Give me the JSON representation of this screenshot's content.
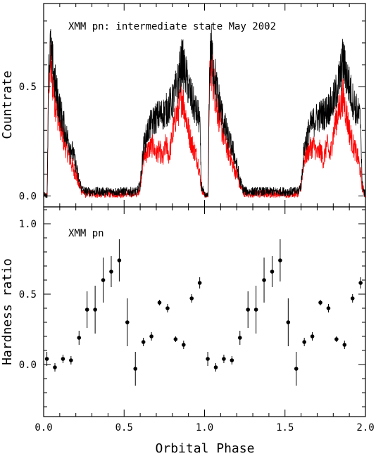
{
  "chart_data": [
    {
      "type": "line",
      "annotation": "XMM pn: intermediate state May 2002",
      "ylabel": "Countrate",
      "xlim": [
        0.0,
        2.0
      ],
      "ylim": [
        -0.05,
        0.88
      ],
      "yticks": [
        0.0,
        0.5
      ],
      "ytick_labels": [
        "0.0",
        "0.5"
      ],
      "grid": false,
      "series": [
        {
          "color": "#000000",
          "profile": {
            "phase": [
              0.0,
              0.015,
              0.022,
              0.03,
              0.04,
              0.05,
              0.06,
              0.07,
              0.08,
              0.1,
              0.12,
              0.14,
              0.16,
              0.18,
              0.2,
              0.22,
              0.24,
              0.26,
              0.3,
              0.4,
              0.5,
              0.55,
              0.58,
              0.6,
              0.61,
              0.62,
              0.64,
              0.66,
              0.7,
              0.75,
              0.8,
              0.82,
              0.84,
              0.86,
              0.88,
              0.9,
              0.92,
              0.94,
              0.95,
              0.96,
              0.97,
              0.98,
              1.0
            ],
            "rate": [
              0.0,
              0.0,
              0.0,
              0.55,
              0.68,
              0.62,
              0.58,
              0.52,
              0.47,
              0.4,
              0.34,
              0.28,
              0.24,
              0.2,
              0.14,
              0.07,
              0.03,
              0.02,
              0.02,
              0.02,
              0.02,
              0.02,
              0.02,
              0.05,
              0.14,
              0.22,
              0.28,
              0.32,
              0.36,
              0.38,
              0.43,
              0.48,
              0.54,
              0.62,
              0.56,
              0.5,
              0.44,
              0.4,
              0.38,
              0.37,
              0.34,
              0.05,
              0.0
            ]
          }
        },
        {
          "color": "#ff0000",
          "profile": {
            "phase": [
              0.0,
              0.015,
              0.022,
              0.03,
              0.04,
              0.05,
              0.06,
              0.07,
              0.08,
              0.1,
              0.12,
              0.14,
              0.16,
              0.18,
              0.2,
              0.22,
              0.24,
              0.26,
              0.3,
              0.4,
              0.5,
              0.55,
              0.58,
              0.6,
              0.61,
              0.62,
              0.64,
              0.66,
              0.68,
              0.7,
              0.72,
              0.74,
              0.76,
              0.78,
              0.8,
              0.82,
              0.84,
              0.86,
              0.88,
              0.9,
              0.92,
              0.94,
              0.95,
              0.96,
              0.97,
              0.98,
              1.0
            ],
            "rate": [
              0.0,
              0.0,
              0.0,
              0.5,
              0.6,
              0.55,
              0.5,
              0.44,
              0.4,
              0.33,
              0.27,
              0.22,
              0.18,
              0.13,
              0.1,
              0.05,
              0.02,
              0.01,
              0.01,
              0.01,
              0.01,
              0.01,
              0.01,
              0.04,
              0.12,
              0.17,
              0.2,
              0.22,
              0.23,
              0.19,
              0.21,
              0.16,
              0.24,
              0.18,
              0.28,
              0.36,
              0.4,
              0.46,
              0.38,
              0.3,
              0.24,
              0.2,
              0.18,
              0.15,
              0.1,
              0.04,
              0.0
            ]
          }
        }
      ]
    },
    {
      "type": "scatter",
      "annotation": "XMM pn",
      "xlabel": "Orbital Phase",
      "ylabel": "Hardness ratio",
      "xlim": [
        0.0,
        2.0
      ],
      "ylim": [
        -0.37,
        1.12
      ],
      "xticks": [
        0.0,
        0.5,
        1.0,
        1.5,
        2.0
      ],
      "xtick_labels": [
        "0.0",
        "0.5",
        "1.0",
        "1.5",
        "2.0"
      ],
      "yticks": [
        0.0,
        0.5,
        1.0
      ],
      "ytick_labels": [
        "0.0",
        "0.5",
        "1.0"
      ],
      "grid": false,
      "color": "#000000",
      "points": [
        {
          "x": 0.02,
          "y": 0.04,
          "err": 0.05
        },
        {
          "x": 0.07,
          "y": -0.02,
          "err": 0.03
        },
        {
          "x": 0.12,
          "y": 0.04,
          "err": 0.03
        },
        {
          "x": 0.17,
          "y": 0.03,
          "err": 0.03
        },
        {
          "x": 0.22,
          "y": 0.19,
          "err": 0.05
        },
        {
          "x": 0.27,
          "y": 0.39,
          "err": 0.13
        },
        {
          "x": 0.32,
          "y": 0.39,
          "err": 0.17
        },
        {
          "x": 0.37,
          "y": 0.6,
          "err": 0.16
        },
        {
          "x": 0.42,
          "y": 0.66,
          "err": 0.11
        },
        {
          "x": 0.47,
          "y": 0.74,
          "err": 0.15
        },
        {
          "x": 0.52,
          "y": 0.3,
          "err": 0.17
        },
        {
          "x": 0.57,
          "y": -0.03,
          "err": 0.12
        },
        {
          "x": 0.62,
          "y": 0.16,
          "err": 0.03
        },
        {
          "x": 0.67,
          "y": 0.2,
          "err": 0.03
        },
        {
          "x": 0.72,
          "y": 0.44,
          "err": 0.02
        },
        {
          "x": 0.77,
          "y": 0.4,
          "err": 0.03
        },
        {
          "x": 0.82,
          "y": 0.18,
          "err": 0.02
        },
        {
          "x": 0.87,
          "y": 0.14,
          "err": 0.03
        },
        {
          "x": 0.92,
          "y": 0.47,
          "err": 0.03
        },
        {
          "x": 0.97,
          "y": 0.58,
          "err": 0.04
        },
        {
          "x": 1.02,
          "y": 0.04,
          "err": 0.05
        },
        {
          "x": 1.07,
          "y": -0.02,
          "err": 0.03
        },
        {
          "x": 1.12,
          "y": 0.04,
          "err": 0.03
        },
        {
          "x": 1.17,
          "y": 0.03,
          "err": 0.03
        },
        {
          "x": 1.22,
          "y": 0.19,
          "err": 0.05
        },
        {
          "x": 1.27,
          "y": 0.39,
          "err": 0.13
        },
        {
          "x": 1.32,
          "y": 0.39,
          "err": 0.17
        },
        {
          "x": 1.37,
          "y": 0.6,
          "err": 0.16
        },
        {
          "x": 1.42,
          "y": 0.66,
          "err": 0.11
        },
        {
          "x": 1.47,
          "y": 0.74,
          "err": 0.15
        },
        {
          "x": 1.52,
          "y": 0.3,
          "err": 0.17
        },
        {
          "x": 1.57,
          "y": -0.03,
          "err": 0.12
        },
        {
          "x": 1.62,
          "y": 0.16,
          "err": 0.03
        },
        {
          "x": 1.67,
          "y": 0.2,
          "err": 0.03
        },
        {
          "x": 1.72,
          "y": 0.44,
          "err": 0.02
        },
        {
          "x": 1.77,
          "y": 0.4,
          "err": 0.03
        },
        {
          "x": 1.82,
          "y": 0.18,
          "err": 0.02
        },
        {
          "x": 1.87,
          "y": 0.14,
          "err": 0.03
        },
        {
          "x": 1.92,
          "y": 0.47,
          "err": 0.03
        },
        {
          "x": 1.97,
          "y": 0.58,
          "err": 0.04
        }
      ]
    }
  ]
}
